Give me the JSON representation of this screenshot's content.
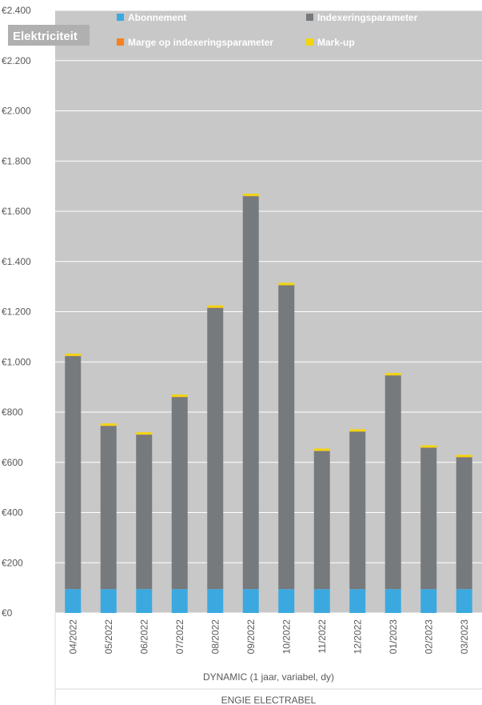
{
  "chart_data": {
    "type": "bar",
    "stacked": true,
    "title": "Elektriciteit",
    "categories": [
      "04/2022",
      "05/2022",
      "06/2022",
      "07/2022",
      "08/2022",
      "09/2022",
      "10/2022",
      "11/2022",
      "12/2022",
      "01/2023",
      "02/2023",
      "03/2023"
    ],
    "series": [
      {
        "name": "Abonnement",
        "color": "#3ba9e0",
        "values": [
          95,
          95,
          95,
          95,
          95,
          95,
          95,
          95,
          95,
          95,
          95,
          95
        ]
      },
      {
        "name": "Indexeringsparameter",
        "color": "#767a7d",
        "values": [
          928,
          650,
          615,
          765,
          1120,
          1565,
          1210,
          550,
          627,
          851,
          563,
          525
        ]
      },
      {
        "name": "Marge op indexeringsparameter",
        "color": "#f5821f",
        "values": [
          1,
          1,
          1,
          1,
          1,
          1,
          1,
          1,
          1,
          1,
          1,
          1
        ]
      },
      {
        "name": "Mark-up",
        "color": "#f2d50f",
        "values": [
          9,
          9,
          9,
          9,
          9,
          9,
          9,
          9,
          9,
          9,
          9,
          9
        ]
      }
    ],
    "ylim": [
      0,
      2400
    ],
    "yticks": [
      0,
      200,
      400,
      600,
      800,
      1000,
      1200,
      1400,
      1600,
      1800,
      2000,
      2200,
      2400
    ],
    "ytick_labels": [
      "€0",
      "€200",
      "€400",
      "€600",
      "€800",
      "€1.000",
      "€1.200",
      "€1.400",
      "€1.600",
      "€1.800",
      "€2.000",
      "€2.200",
      "€2.400"
    ],
    "group_labels": [
      "DYNAMIC (1 jaar, variabel, dy)",
      "ENGIE ELECTRABEL"
    ],
    "grid": true,
    "legend_position": "top"
  },
  "colors": {
    "plot_background": "#c8c8c8",
    "gridline": "#ffffff",
    "title_box": "#b0b0b0"
  }
}
